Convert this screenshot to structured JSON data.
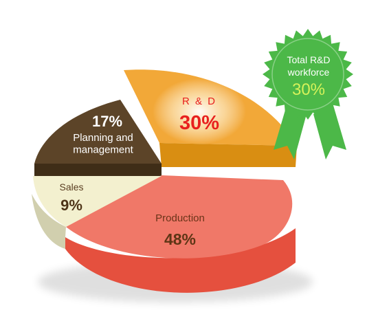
{
  "chart_data": {
    "type": "pie",
    "title": "",
    "slices": [
      {
        "label": "R & D",
        "value": 30,
        "value_text": "30%",
        "color": "#F2A838",
        "side_color": "#D98E12",
        "label_color": "#F8E7C0",
        "value_color": "#E8201E"
      },
      {
        "label": "Production",
        "value": 48,
        "value_text": "48%",
        "color": "#F07868",
        "side_color": "#E5503E",
        "label_color": "#6A3318",
        "value_color": "#5E3515"
      },
      {
        "label": "Sales",
        "value": 9,
        "value_text": "9%",
        "color": "#F3F0CF",
        "side_color": "#D1CFAE",
        "label_color": "#5A3E22",
        "value_color": "#4E3418"
      },
      {
        "label": "Planning and\nmanagement",
        "value": 17,
        "value_text": "17%",
        "color": "#5C4428",
        "side_color": "#3F2D17",
        "label_color": "#FFFFFF",
        "value_color": "#FFFFFF"
      }
    ],
    "legend": "none"
  },
  "badge": {
    "line1": "Total R&D",
    "line2": "workforce",
    "value": "30%",
    "color": "#4CB848",
    "value_color": "#D6F25A",
    "text_color": "#FFFFFF"
  }
}
